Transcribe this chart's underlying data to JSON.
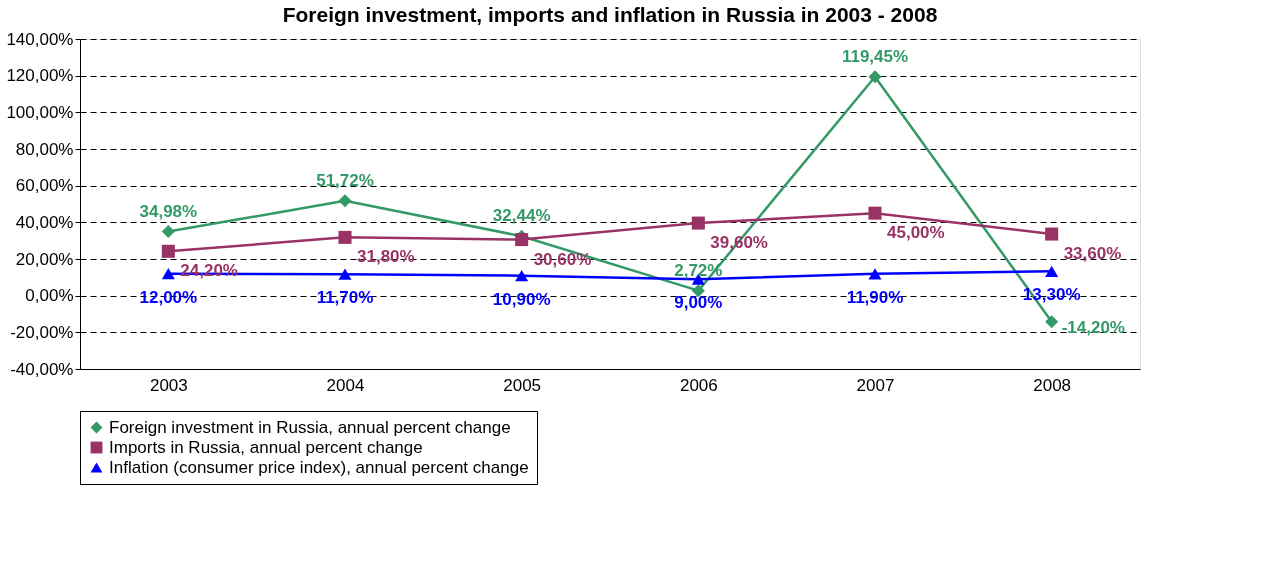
{
  "chart_data": {
    "type": "line",
    "title": "Foreign investment, imports and inflation in Russia in 2003 - 2008",
    "categories": [
      "2003",
      "2004",
      "2005",
      "2006",
      "2007",
      "2008"
    ],
    "series": [
      {
        "name": "Foreign investment in Russia, annual percent change",
        "color": "#339966",
        "marker": "diamond",
        "values": [
          34.98,
          51.72,
          32.44,
          2.72,
          119.45,
          -14.2
        ],
        "value_labels": [
          "34,98%",
          "51,72%",
          "32,44%",
          "2,72%",
          "119,45%",
          "-14,20%"
        ]
      },
      {
        "name": "Imports in Russia, annual percent change",
        "color": "#993366",
        "marker": "square",
        "values": [
          24.2,
          31.8,
          30.6,
          39.6,
          45.0,
          33.6
        ],
        "value_labels": [
          "24,20%",
          "31,80%",
          "30,60%",
          "39,60%",
          "45,00%",
          "33,60%"
        ]
      },
      {
        "name": "Inflation (consumer price index), annual percent change",
        "color": "#0000ff",
        "marker": "triangle",
        "values": [
          12.0,
          11.7,
          10.9,
          9.0,
          11.9,
          13.3
        ],
        "value_labels": [
          "12,00%",
          "11,70%",
          "10,90%",
          "9,00%",
          "11,90%",
          "13,30%"
        ]
      }
    ],
    "ylim": [
      -40,
      140
    ],
    "yticks": [
      {
        "value": -40,
        "label": "-40,00%"
      },
      {
        "value": -20,
        "label": "-20,00%"
      },
      {
        "value": 0,
        "label": "0,00%"
      },
      {
        "value": 20,
        "label": "20,00%"
      },
      {
        "value": 40,
        "label": "40,00%"
      },
      {
        "value": 60,
        "label": "60,00%"
      },
      {
        "value": 80,
        "label": "80,00%"
      },
      {
        "value": 100,
        "label": "100,00%"
      },
      {
        "value": 120,
        "label": "120,00%"
      },
      {
        "value": 140,
        "label": "140,00%"
      }
    ],
    "grid": "y",
    "legend": "bottom",
    "line_style": "solid"
  }
}
